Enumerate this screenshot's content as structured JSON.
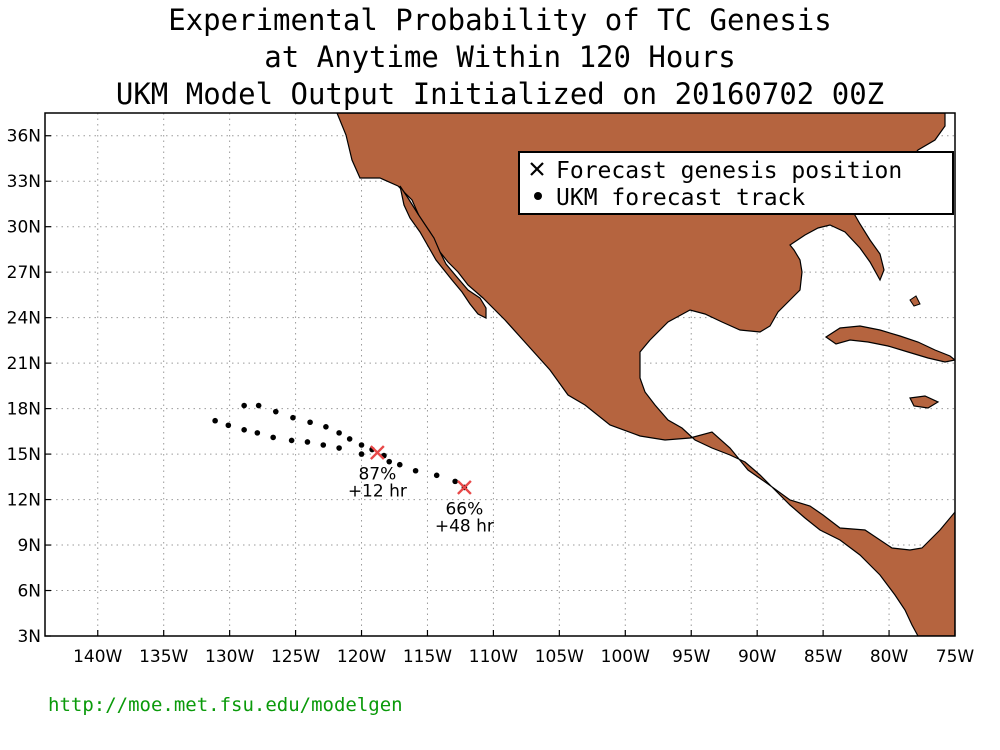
{
  "title": {
    "line1": "Experimental Probability of TC Genesis",
    "line2": "at Anytime Within 120 Hours",
    "line3": "UKM Model Output Initialized on 20160702 00Z"
  },
  "map": {
    "lon_range": [
      -144,
      -75
    ],
    "lat_range": [
      3,
      37.5
    ],
    "x_ticks": [
      "140W",
      "135W",
      "130W",
      "125W",
      "120W",
      "115W",
      "110W",
      "105W",
      "100W",
      "95W",
      "90W",
      "85W",
      "80W",
      "75W"
    ],
    "y_ticks": [
      "3N",
      "6N",
      "9N",
      "12N",
      "15N",
      "18N",
      "21N",
      "24N",
      "27N",
      "30N",
      "33N",
      "36N"
    ],
    "land_color": "#b5643f",
    "marker_color": "#e84848"
  },
  "legend": {
    "genesis_label": "Forecast genesis position",
    "track_label": "UKM forecast track"
  },
  "genesis": [
    {
      "lon": -118.8,
      "lat": 15.1,
      "prob": "87%",
      "hour": "+12 hr"
    },
    {
      "lon": -112.2,
      "lat": 12.8,
      "prob": "66%",
      "hour": "+48 hr"
    }
  ],
  "tracks": [
    [
      [
        -128.9,
        18.2
      ],
      [
        -127.8,
        18.2
      ],
      [
        -126.5,
        17.8
      ],
      [
        -125.2,
        17.4
      ],
      [
        -123.9,
        17.1
      ],
      [
        -122.7,
        16.8
      ],
      [
        -121.7,
        16.4
      ],
      [
        -120.9,
        16.0
      ],
      [
        -120.0,
        15.6
      ],
      [
        -119.2,
        15.3
      ]
    ],
    [
      [
        -131.1,
        17.2
      ],
      [
        -130.1,
        16.9
      ],
      [
        -128.9,
        16.6
      ],
      [
        -127.9,
        16.4
      ],
      [
        -126.7,
        16.1
      ],
      [
        -125.3,
        15.9
      ],
      [
        -124.1,
        15.8
      ],
      [
        -122.9,
        15.6
      ],
      [
        -121.7,
        15.4
      ],
      [
        -120.0,
        15.0
      ]
    ],
    [
      [
        -118.3,
        14.9
      ],
      [
        -117.9,
        14.5
      ],
      [
        -117.1,
        14.3
      ],
      [
        -115.9,
        13.9
      ],
      [
        -114.3,
        13.6
      ],
      [
        -112.9,
        13.2
      ],
      [
        -112.2,
        12.8
      ]
    ]
  ],
  "footer": {
    "url": "http://moe.met.fsu.edu/modelgen"
  }
}
